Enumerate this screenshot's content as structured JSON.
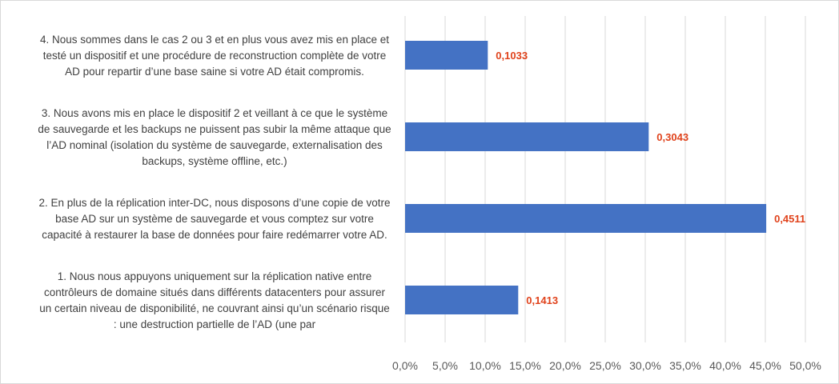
{
  "chart_data": {
    "type": "bar",
    "orientation": "horizontal",
    "categories": [
      [
        "1. Nous nous appuyons uniquement sur la réplication native entre",
        "contrôleurs de domaine situés dans différents datacenters pour assurer",
        "un certain niveau de disponibilité, ne couvrant ainsi qu’un scénario risque",
        ": une destruction partielle de l’AD (une par"
      ],
      [
        "2. En plus de la réplication inter-DC, nous disposons d’une copie de votre",
        "base AD sur un système de sauvegarde et vous comptez sur votre",
        "capacité à restaurer la base de données pour faire redémarrer votre AD."
      ],
      [
        "3. Nous avons mis en place le dispositif 2 et veillant à ce que le système",
        "de sauvegarde et les backups ne puissent pas subir la même attaque que",
        "l’AD nominal (isolation du système de sauvegarde, externalisation des",
        "backups, système offline, etc.)"
      ],
      [
        "4. Nous sommes dans le cas 2 ou 3 et en plus vous avez mis en place et",
        "testé un dispositif et une procédure de reconstruction complète de votre",
        "AD pour repartir d’une base saine si votre AD était compromis."
      ]
    ],
    "values": [
      0.1413,
      0.4511,
      0.3043,
      0.1033
    ],
    "data_labels": [
      "0,1413",
      "0,4511",
      "0,3043",
      "0,1033"
    ],
    "xlim": [
      0,
      0.5
    ],
    "xticks": [
      "0,0%",
      "5,0%",
      "10,0%",
      "15,0%",
      "20,0%",
      "25,0%",
      "30,0%",
      "35,0%",
      "40,0%",
      "45,0%",
      "50,0%"
    ],
    "grid": true,
    "bar_color": "#4472c4",
    "label_color": "#e0421b",
    "grid_color": "#d9d9d9"
  }
}
